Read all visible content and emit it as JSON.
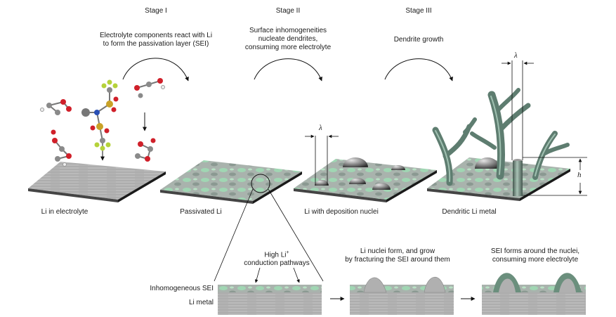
{
  "stages": [
    {
      "heading": "Stage I",
      "caption": [
        "Electrolyte components react with Li",
        "to form the passivation layer (SEI)"
      ]
    },
    {
      "heading": "Stage II",
      "caption": [
        "Surface inhomogeneities",
        "nucleate dendrites,",
        "consuming more electrolyte"
      ]
    },
    {
      "heading": "Stage III",
      "caption": [
        "Dendrite growth"
      ]
    }
  ],
  "panels": [
    {
      "label": "Li in electrolyte"
    },
    {
      "label": "Passivated Li"
    },
    {
      "label": "Li with deposition nuclei"
    },
    {
      "label": "Dendritic Li metal"
    }
  ],
  "symbols": {
    "lambda": "λ",
    "height": "h"
  },
  "bottom": {
    "pathways_label_1": "High Li",
    "pathways_sup": "+",
    "pathways_label_2": "conduction pathways",
    "sei_label": "Inhomogeneous SEI",
    "metal_label": "Li metal",
    "step2_caption": [
      "Li nuclei form, and grow",
      "by fracturing the SEI around them"
    ],
    "step3_caption": [
      "SEI forms around the nuclei,",
      "consuming more electrolyte"
    ]
  },
  "colors": {
    "li_metal": "#a9a9a9",
    "sei_green": "#8fd6a8",
    "dendrite": "#6f8f82",
    "oxygen": "#d0202a",
    "carbon": "#8a8a8a",
    "fluorine": "#b5d23a",
    "sulfur": "#c9a227",
    "nitrogen": "#2a4fb5"
  }
}
